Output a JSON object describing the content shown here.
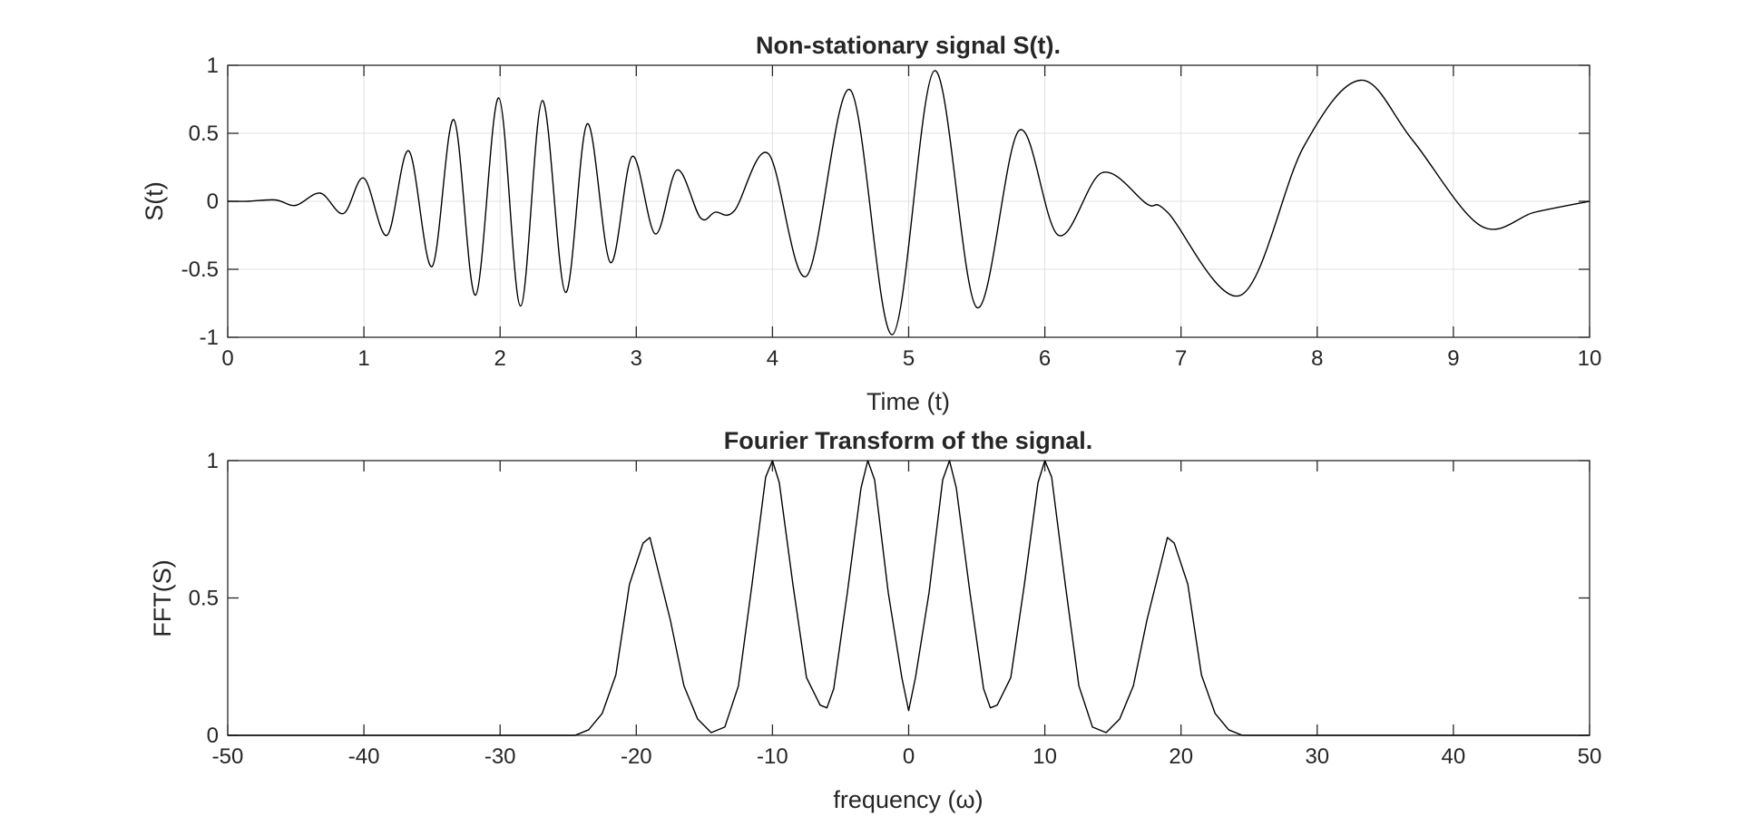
{
  "chart_data": [
    {
      "type": "line",
      "title": "Non-stationary signal S(t).",
      "xlabel": "Time (t)",
      "ylabel": "S(t)",
      "xlim": [
        0,
        10
      ],
      "ylim": [
        -1,
        1
      ],
      "x_ticks": [
        "0",
        "1",
        "2",
        "3",
        "4",
        "5",
        "6",
        "7",
        "8",
        "9",
        "10"
      ],
      "y_ticks": [
        "1",
        "0.5",
        "0",
        "-0.5",
        "-1"
      ],
      "grid": true,
      "series": [
        {
          "x": [
            0.0,
            0.15,
            0.35,
            0.5,
            0.68,
            0.85,
            1.0,
            1.17,
            1.33,
            1.5,
            1.66,
            1.82,
            1.99,
            2.15,
            2.31,
            2.48,
            2.64,
            2.81,
            2.97,
            3.14,
            3.3,
            3.47,
            3.58,
            3.72,
            3.97,
            4.25,
            4.57,
            4.88,
            5.19,
            5.5,
            5.81,
            6.1,
            6.42,
            6.75,
            6.9,
            7.44,
            7.9,
            8.32,
            8.7,
            9.2,
            9.6,
            10.0
          ],
          "y": [
            0.0,
            0.0,
            0.01,
            -0.03,
            0.06,
            -0.09,
            0.17,
            -0.25,
            0.37,
            -0.48,
            0.6,
            -0.69,
            0.76,
            -0.77,
            0.74,
            -0.67,
            0.57,
            -0.45,
            0.33,
            -0.24,
            0.23,
            -0.12,
            -0.08,
            -0.07,
            0.35,
            -0.55,
            0.82,
            -0.98,
            0.96,
            -0.78,
            0.52,
            -0.25,
            0.21,
            -0.02,
            -0.08,
            -0.69,
            0.4,
            0.89,
            0.45,
            -0.18,
            -0.08,
            0.0
          ]
        }
      ]
    },
    {
      "type": "line",
      "title": "Fourier Transform of the signal.",
      "xlabel": "frequency (ω)",
      "ylabel": "FFT(S)",
      "xlim": [
        -50,
        50
      ],
      "ylim": [
        0,
        1
      ],
      "x_ticks": [
        "-50",
        "-40",
        "-30",
        "-20",
        "-10",
        "0",
        "10",
        "20",
        "30",
        "40",
        "50"
      ],
      "y_ticks": [
        "1",
        "0.5",
        "0"
      ],
      "grid": false,
      "series": [
        {
          "x": [
            -50,
            -24.5,
            -23.5,
            -22.5,
            -21.5,
            -20.5,
            -19.5,
            -19.0,
            -18.5,
            -17.5,
            -16.5,
            -15.5,
            -14.5,
            -13.5,
            -12.5,
            -11.5,
            -10.5,
            -10.0,
            -9.5,
            -8.5,
            -7.5,
            -6.5,
            -6.0,
            -5.5,
            -4.5,
            -3.5,
            -3.0,
            -2.5,
            -1.5,
            -0.5,
            0,
            0.5,
            1.5,
            2.5,
            3.0,
            3.5,
            4.5,
            5.5,
            6.0,
            6.5,
            7.5,
            8.5,
            9.5,
            10.0,
            10.5,
            11.5,
            12.5,
            13.5,
            14.5,
            15.5,
            16.5,
            17.5,
            18.5,
            19.0,
            19.5,
            20.5,
            21.5,
            22.5,
            23.5,
            24.5,
            50
          ],
          "y": [
            0.0,
            0.0,
            0.02,
            0.08,
            0.22,
            0.55,
            0.7,
            0.72,
            0.62,
            0.42,
            0.18,
            0.06,
            0.01,
            0.03,
            0.18,
            0.55,
            0.94,
            1.0,
            0.92,
            0.55,
            0.21,
            0.11,
            0.1,
            0.17,
            0.52,
            0.9,
            1.0,
            0.93,
            0.52,
            0.21,
            0.09,
            0.21,
            0.52,
            0.93,
            1.0,
            0.9,
            0.52,
            0.17,
            0.1,
            0.11,
            0.21,
            0.55,
            0.92,
            1.0,
            0.94,
            0.55,
            0.18,
            0.03,
            0.01,
            0.06,
            0.18,
            0.42,
            0.62,
            0.72,
            0.7,
            0.55,
            0.22,
            0.08,
            0.02,
            0.0,
            0.0
          ]
        }
      ]
    }
  ]
}
